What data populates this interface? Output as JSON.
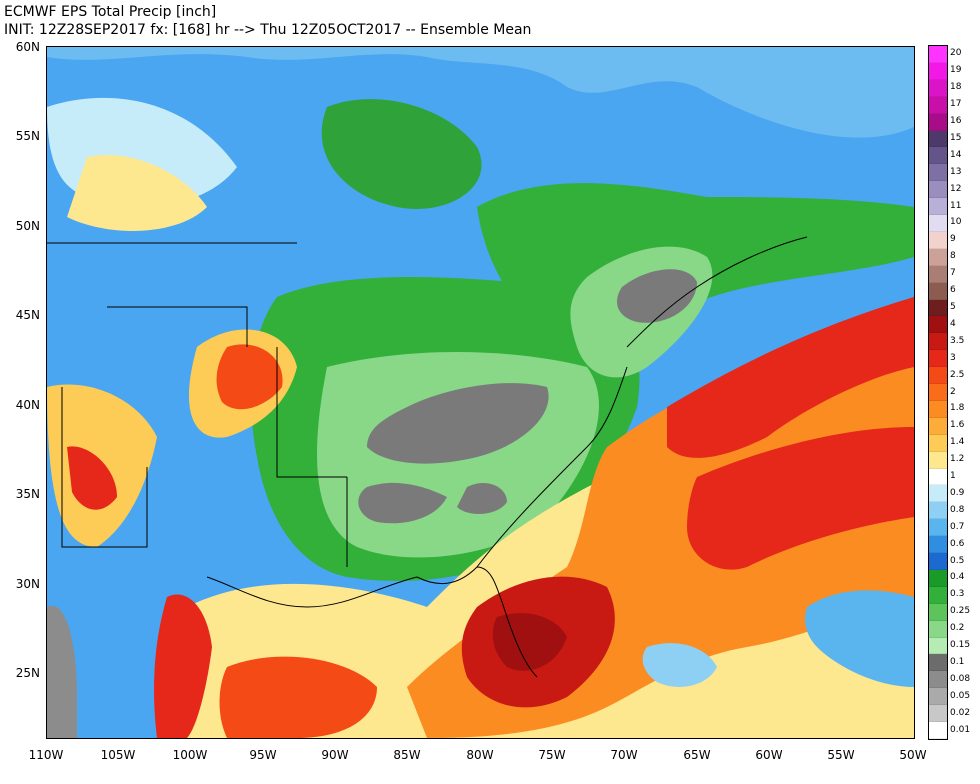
{
  "header": {
    "title_line1": "ECMWF EPS Total Precip [inch]",
    "title_line2": "INIT: 12Z28SEP2017 fx: [168] hr --> Thu 12Z05OCT2017 -- Ensemble Mean"
  },
  "map": {
    "projection": "lat-lon",
    "lon_range": [
      -110,
      -50
    ],
    "lat_range": [
      21,
      60
    ],
    "lat_ticks": [
      "60N",
      "55N",
      "50N",
      "45N",
      "40N",
      "35N",
      "30N",
      "25N"
    ],
    "lon_ticks": [
      "110W",
      "105W",
      "100W",
      "95W",
      "90W",
      "85W",
      "80W",
      "75W",
      "70W",
      "65W",
      "60W",
      "55W",
      "50W"
    ],
    "ocean_color": "#4aa6f0"
  },
  "colorbar": {
    "labels": [
      "20",
      "19",
      "18",
      "17",
      "16",
      "15",
      "14",
      "13",
      "12",
      "11",
      "10",
      "9",
      "8",
      "7",
      "6",
      "5",
      "4",
      "3.5",
      "3",
      "2.5",
      "2",
      "1.8",
      "1.6",
      "1.4",
      "1.2",
      "1",
      "0.9",
      "0.8",
      "0.7",
      "0.6",
      "0.5",
      "0.4",
      "0.3",
      "0.25",
      "0.2",
      "0.15",
      "0.1",
      "0.08",
      "0.05",
      "0.02",
      "0.01"
    ],
    "colors": [
      "#ff33ff",
      "#f218e6",
      "#dc14c8",
      "#c80fa8",
      "#a80c88",
      "#4e3a6a",
      "#64548a",
      "#7e70a4",
      "#9a8ebe",
      "#b8b0d8",
      "#e2dcf0",
      "#f2d2cc",
      "#cca298",
      "#aa7e74",
      "#8c5c50",
      "#6e1e1e",
      "#a01010",
      "#c81a12",
      "#e6281a",
      "#f44a16",
      "#f86c1a",
      "#fa8c22",
      "#fcac38",
      "#fdcc56",
      "#fde890",
      "#ffffff",
      "#c6ecfa",
      "#8ed0f4",
      "#5ab4ee",
      "#2f8ee0",
      "#1c6ad0",
      "#1a9a28",
      "#32b03a",
      "#5cc45a",
      "#88d888",
      "#b4ecb4",
      "#6c6c6c",
      "#8c8c8c",
      "#aaaaaa",
      "#c8c8c8",
      "#ffffff"
    ]
  }
}
